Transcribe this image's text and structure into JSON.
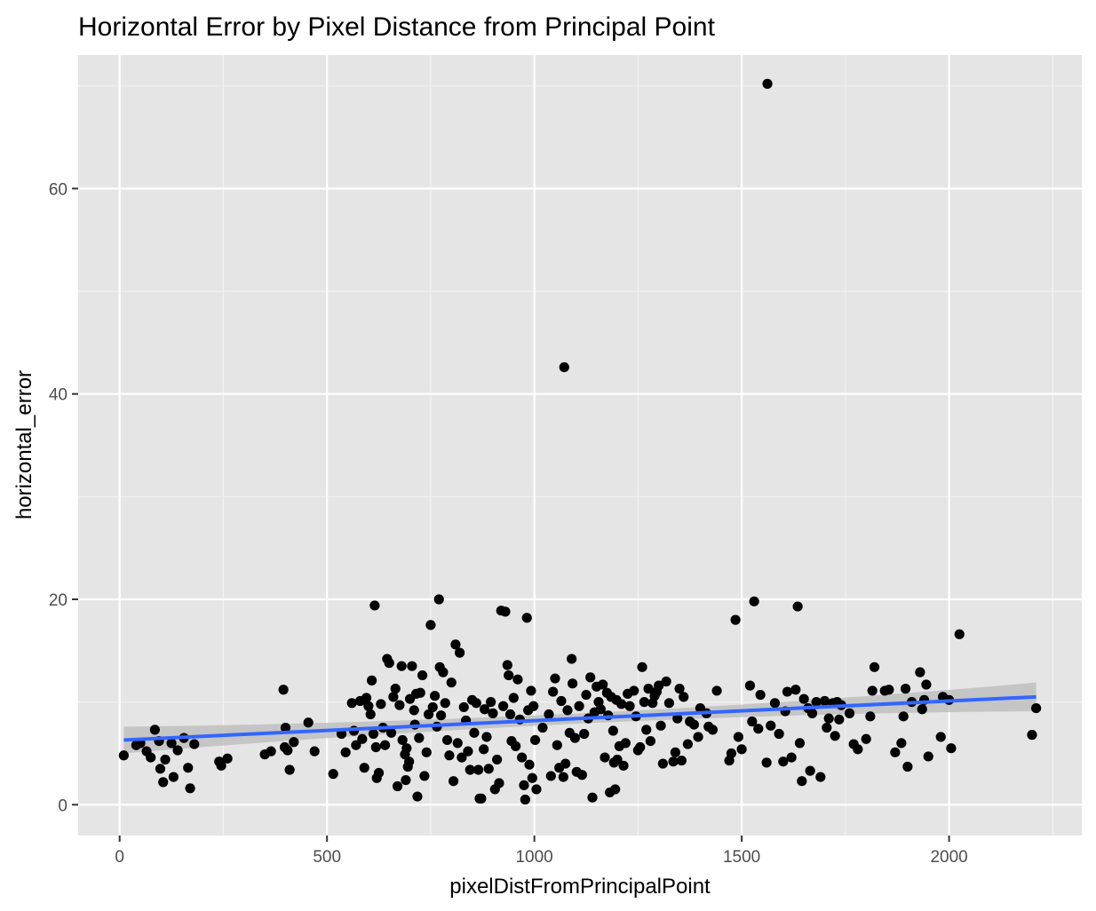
{
  "chart_data": {
    "type": "scatter",
    "title": "Horizontal Error by Pixel Distance from Principal Point",
    "xlabel": "pixelDistFromPrincipalPoint",
    "ylabel": "horizontal_error",
    "xlim": [
      -100,
      2320
    ],
    "ylim": [
      -3,
      73
    ],
    "x_ticks": [
      0,
      500,
      1000,
      1500,
      2000
    ],
    "y_ticks": [
      0,
      20,
      40,
      60
    ],
    "x_tick_labels": [
      "0",
      "500",
      "1000",
      "1500",
      "2000"
    ],
    "y_tick_labels": [
      "0",
      "20",
      "40",
      "60"
    ],
    "grid": true,
    "background": "#e5e5e5",
    "point_color": "#000000",
    "fit": {
      "method": "lm",
      "color": "#3366ff",
      "band_color": "#bfbfbf",
      "x_range": [
        10,
        2210
      ],
      "y_start": 6.3,
      "y_end": 10.5,
      "se_start": 1.3,
      "se_mid": 0.5,
      "se_end": 1.4
    },
    "points": [
      [
        10,
        4.8
      ],
      [
        40,
        5.8
      ],
      [
        50,
        6.0
      ],
      [
        65,
        5.2
      ],
      [
        75,
        4.6
      ],
      [
        85,
        7.3
      ],
      [
        95,
        6.2
      ],
      [
        98,
        3.5
      ],
      [
        105,
        2.2
      ],
      [
        110,
        4.4
      ],
      [
        125,
        6.0
      ],
      [
        130,
        2.7
      ],
      [
        140,
        5.3
      ],
      [
        155,
        6.5
      ],
      [
        165,
        3.6
      ],
      [
        170,
        1.6
      ],
      [
        180,
        5.9
      ],
      [
        240,
        4.2
      ],
      [
        245,
        3.8
      ],
      [
        260,
        4.5
      ],
      [
        350,
        4.9
      ],
      [
        365,
        5.2
      ],
      [
        395,
        11.2
      ],
      [
        398,
        5.6
      ],
      [
        400,
        7.5
      ],
      [
        405,
        5.3
      ],
      [
        410,
        3.4
      ],
      [
        420,
        6.1
      ],
      [
        455,
        8.0
      ],
      [
        470,
        5.2
      ],
      [
        515,
        3.0
      ],
      [
        535,
        6.9
      ],
      [
        545,
        5.1
      ],
      [
        560,
        9.9
      ],
      [
        565,
        7.2
      ],
      [
        570,
        5.8
      ],
      [
        580,
        10.1
      ],
      [
        585,
        6.4
      ],
      [
        590,
        3.6
      ],
      [
        595,
        10.4
      ],
      [
        600,
        9.6
      ],
      [
        605,
        8.8
      ],
      [
        608,
        12.1
      ],
      [
        612,
        6.9
      ],
      [
        615,
        19.4
      ],
      [
        618,
        5.6
      ],
      [
        620,
        2.6
      ],
      [
        625,
        3.1
      ],
      [
        630,
        9.8
      ],
      [
        635,
        7.5
      ],
      [
        640,
        5.8
      ],
      [
        645,
        14.2
      ],
      [
        650,
        13.8
      ],
      [
        655,
        7.0
      ],
      [
        660,
        10.5
      ],
      [
        665,
        11.3
      ],
      [
        670,
        1.8
      ],
      [
        675,
        9.7
      ],
      [
        680,
        13.5
      ],
      [
        682,
        6.3
      ],
      [
        688,
        4.9
      ],
      [
        690,
        2.4
      ],
      [
        692,
        5.5
      ],
      [
        695,
        3.7
      ],
      [
        698,
        4.2
      ],
      [
        700,
        10.3
      ],
      [
        705,
        13.5
      ],
      [
        710,
        9.2
      ],
      [
        712,
        7.8
      ],
      [
        715,
        10.8
      ],
      [
        718,
        0.8
      ],
      [
        722,
        6.5
      ],
      [
        725,
        10.9
      ],
      [
        730,
        12.6
      ],
      [
        735,
        2.8
      ],
      [
        740,
        5.1
      ],
      [
        745,
        8.8
      ],
      [
        750,
        17.5
      ],
      [
        755,
        9.5
      ],
      [
        760,
        10.6
      ],
      [
        765,
        7.6
      ],
      [
        770,
        20.0
      ],
      [
        772,
        13.4
      ],
      [
        775,
        8.7
      ],
      [
        780,
        12.9
      ],
      [
        785,
        9.9
      ],
      [
        790,
        6.3
      ],
      [
        795,
        4.8
      ],
      [
        800,
        11.9
      ],
      [
        805,
        2.3
      ],
      [
        810,
        15.6
      ],
      [
        815,
        6.0
      ],
      [
        820,
        14.8
      ],
      [
        825,
        4.6
      ],
      [
        830,
        9.5
      ],
      [
        835,
        8.2
      ],
      [
        840,
        5.2
      ],
      [
        845,
        3.4
      ],
      [
        850,
        10.2
      ],
      [
        855,
        7.0
      ],
      [
        860,
        9.9
      ],
      [
        865,
        3.4
      ],
      [
        868,
        0.6
      ],
      [
        872,
        0.6
      ],
      [
        878,
        5.4
      ],
      [
        880,
        9.3
      ],
      [
        885,
        6.6
      ],
      [
        890,
        3.5
      ],
      [
        895,
        10.0
      ],
      [
        900,
        8.9
      ],
      [
        905,
        1.5
      ],
      [
        910,
        4.4
      ],
      [
        915,
        2.1
      ],
      [
        920,
        18.9
      ],
      [
        925,
        9.6
      ],
      [
        930,
        18.8
      ],
      [
        935,
        13.6
      ],
      [
        938,
        12.6
      ],
      [
        942,
        8.8
      ],
      [
        945,
        6.2
      ],
      [
        950,
        10.4
      ],
      [
        955,
        5.7
      ],
      [
        960,
        12.2
      ],
      [
        965,
        8.3
      ],
      [
        970,
        4.6
      ],
      [
        975,
        1.9
      ],
      [
        978,
        0.5
      ],
      [
        982,
        18.2
      ],
      [
        985,
        9.2
      ],
      [
        988,
        3.9
      ],
      [
        992,
        11.1
      ],
      [
        995,
        2.6
      ],
      [
        998,
        9.6
      ],
      [
        1002,
        6.3
      ],
      [
        1005,
        1.5
      ],
      [
        1020,
        7.5
      ],
      [
        1035,
        8.8
      ],
      [
        1040,
        2.8
      ],
      [
        1045,
        11.0
      ],
      [
        1050,
        12.3
      ],
      [
        1055,
        5.8
      ],
      [
        1060,
        3.6
      ],
      [
        1065,
        10.1
      ],
      [
        1070,
        2.7
      ],
      [
        1072,
        42.6
      ],
      [
        1075,
        4.0
      ],
      [
        1080,
        9.2
      ],
      [
        1085,
        7.0
      ],
      [
        1090,
        14.2
      ],
      [
        1092,
        11.8
      ],
      [
        1098,
        6.5
      ],
      [
        1102,
        3.2
      ],
      [
        1108,
        9.6
      ],
      [
        1115,
        2.9
      ],
      [
        1120,
        6.9
      ],
      [
        1125,
        10.7
      ],
      [
        1130,
        8.4
      ],
      [
        1135,
        12.4
      ],
      [
        1140,
        0.7
      ],
      [
        1145,
        9.0
      ],
      [
        1150,
        11.5
      ],
      [
        1155,
        10.0
      ],
      [
        1160,
        9.3
      ],
      [
        1165,
        11.7
      ],
      [
        1170,
        4.6
      ],
      [
        1175,
        10.9
      ],
      [
        1178,
        8.7
      ],
      [
        1182,
        1.2
      ],
      [
        1185,
        10.5
      ],
      [
        1190,
        7.2
      ],
      [
        1192,
        4.1
      ],
      [
        1195,
        1.5
      ],
      [
        1198,
        10.2
      ],
      [
        1200,
        4.4
      ],
      [
        1205,
        5.7
      ],
      [
        1210,
        9.8
      ],
      [
        1215,
        3.8
      ],
      [
        1220,
        6.0
      ],
      [
        1225,
        10.8
      ],
      [
        1230,
        9.6
      ],
      [
        1240,
        11.1
      ],
      [
        1245,
        8.6
      ],
      [
        1250,
        5.3
      ],
      [
        1255,
        5.6
      ],
      [
        1260,
        13.4
      ],
      [
        1265,
        10.0
      ],
      [
        1270,
        7.3
      ],
      [
        1275,
        11.3
      ],
      [
        1280,
        6.2
      ],
      [
        1285,
        9.9
      ],
      [
        1290,
        10.6
      ],
      [
        1295,
        11.0
      ],
      [
        1300,
        11.6
      ],
      [
        1305,
        7.7
      ],
      [
        1310,
        4.0
      ],
      [
        1318,
        12.0
      ],
      [
        1325,
        9.9
      ],
      [
        1335,
        4.2
      ],
      [
        1340,
        5.1
      ],
      [
        1345,
        8.4
      ],
      [
        1350,
        11.3
      ],
      [
        1355,
        4.3
      ],
      [
        1360,
        10.5
      ],
      [
        1370,
        5.9
      ],
      [
        1375,
        8.1
      ],
      [
        1385,
        7.8
      ],
      [
        1395,
        6.6
      ],
      [
        1400,
        9.4
      ],
      [
        1415,
        8.9
      ],
      [
        1420,
        7.6
      ],
      [
        1430,
        7.3
      ],
      [
        1440,
        11.1
      ],
      [
        1470,
        4.3
      ],
      [
        1475,
        5.0
      ],
      [
        1485,
        18.0
      ],
      [
        1492,
        6.6
      ],
      [
        1500,
        5.4
      ],
      [
        1520,
        11.6
      ],
      [
        1525,
        8.1
      ],
      [
        1530,
        19.8
      ],
      [
        1540,
        7.4
      ],
      [
        1545,
        10.7
      ],
      [
        1560,
        4.1
      ],
      [
        1562,
        70.2
      ],
      [
        1570,
        7.7
      ],
      [
        1580,
        9.9
      ],
      [
        1590,
        6.9
      ],
      [
        1600,
        4.2
      ],
      [
        1605,
        9.1
      ],
      [
        1610,
        11.0
      ],
      [
        1620,
        4.6
      ],
      [
        1630,
        11.2
      ],
      [
        1635,
        19.3
      ],
      [
        1640,
        6.0
      ],
      [
        1645,
        2.3
      ],
      [
        1650,
        10.3
      ],
      [
        1660,
        9.4
      ],
      [
        1665,
        3.3
      ],
      [
        1670,
        8.9
      ],
      [
        1680,
        10.0
      ],
      [
        1690,
        2.7
      ],
      [
        1700,
        10.1
      ],
      [
        1705,
        7.5
      ],
      [
        1710,
        8.4
      ],
      [
        1720,
        9.9
      ],
      [
        1725,
        6.7
      ],
      [
        1730,
        10.0
      ],
      [
        1735,
        8.3
      ],
      [
        1740,
        9.7
      ],
      [
        1760,
        8.9
      ],
      [
        1770,
        5.9
      ],
      [
        1780,
        5.4
      ],
      [
        1800,
        6.4
      ],
      [
        1810,
        8.6
      ],
      [
        1815,
        11.1
      ],
      [
        1820,
        13.4
      ],
      [
        1845,
        11.1
      ],
      [
        1855,
        11.2
      ],
      [
        1870,
        5.1
      ],
      [
        1885,
        6.0
      ],
      [
        1890,
        8.6
      ],
      [
        1895,
        11.3
      ],
      [
        1900,
        3.7
      ],
      [
        1910,
        10.0
      ],
      [
        1930,
        12.9
      ],
      [
        1935,
        9.3
      ],
      [
        1940,
        10.2
      ],
      [
        1945,
        11.7
      ],
      [
        1950,
        4.7
      ],
      [
        1980,
        6.6
      ],
      [
        1985,
        10.5
      ],
      [
        2000,
        10.2
      ],
      [
        2005,
        5.5
      ],
      [
        2025,
        16.6
      ],
      [
        2200,
        6.8
      ],
      [
        2210,
        9.4
      ]
    ]
  }
}
